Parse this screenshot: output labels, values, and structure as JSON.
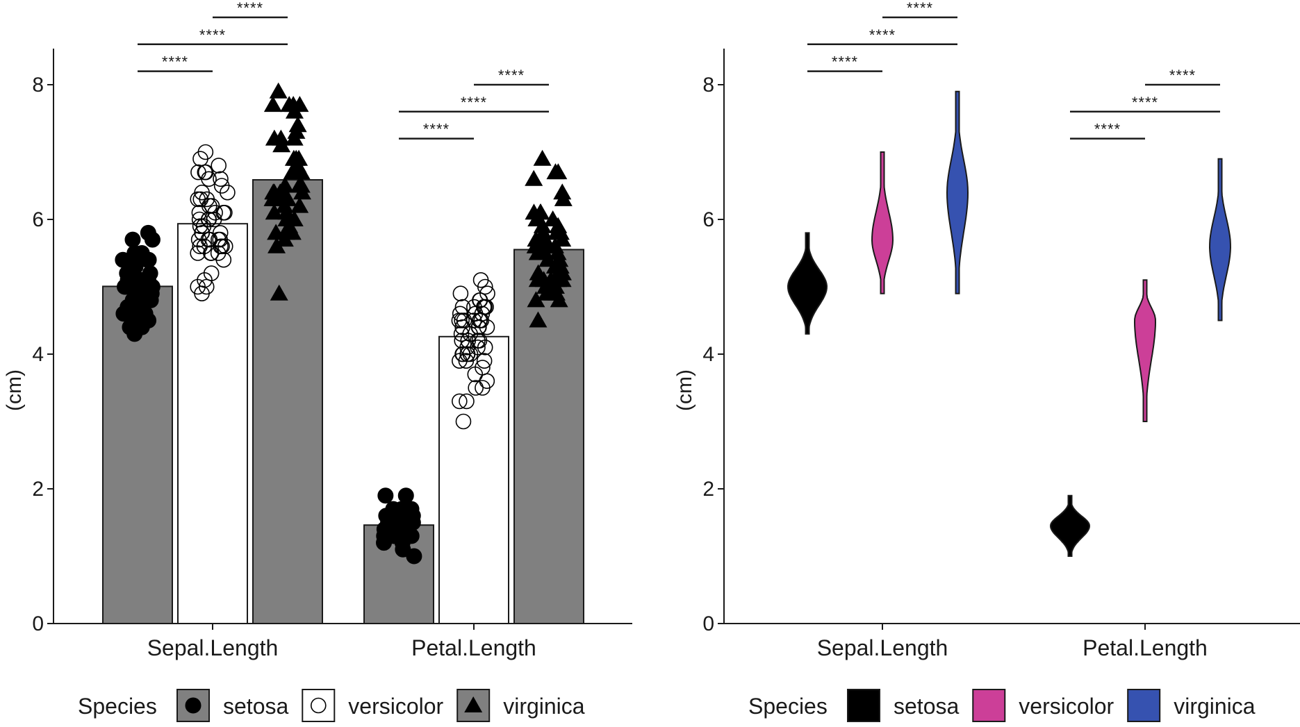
{
  "chart_data": [
    {
      "type": "bar",
      "ylabel": "(cm)",
      "xlabel": "",
      "ylim": [
        0,
        8.5
      ],
      "yticks": [
        0,
        2,
        4,
        6,
        8
      ],
      "grid": false,
      "legend_position": "bottom",
      "categories": [
        "Sepal.Length",
        "Petal.Length"
      ],
      "series": [
        {
          "name": "setosa",
          "fill": "#808080",
          "marker": "filled-circle",
          "values": [
            5.006,
            1.462
          ],
          "points": [
            [
              5.1,
              4.9,
              4.7,
              4.6,
              5.0,
              5.4,
              4.6,
              5.0,
              4.4,
              4.9,
              5.4,
              4.8,
              4.8,
              4.3,
              5.8,
              5.7,
              5.4,
              5.1,
              5.7,
              5.1,
              5.4,
              5.1,
              4.6,
              5.1,
              4.8,
              5.0,
              5.0,
              5.2,
              5.2,
              4.7,
              4.8,
              5.4,
              5.2,
              5.5,
              4.9,
              5.0,
              5.5,
              4.9,
              4.4,
              5.1,
              5.0,
              4.5,
              4.4,
              5.0,
              5.1,
              4.8,
              5.1,
              4.6,
              5.3,
              5.0
            ],
            [
              1.4,
              1.4,
              1.3,
              1.5,
              1.4,
              1.7,
              1.4,
              1.5,
              1.4,
              1.5,
              1.5,
              1.6,
              1.4,
              1.1,
              1.2,
              1.5,
              1.3,
              1.4,
              1.7,
              1.5,
              1.7,
              1.5,
              1.0,
              1.7,
              1.9,
              1.6,
              1.6,
              1.5,
              1.4,
              1.6,
              1.6,
              1.5,
              1.5,
              1.4,
              1.5,
              1.2,
              1.3,
              1.4,
              1.3,
              1.5,
              1.3,
              1.3,
              1.3,
              1.6,
              1.9,
              1.4,
              1.6,
              1.4,
              1.5,
              1.4
            ]
          ]
        },
        {
          "name": "versicolor",
          "fill": "#ffffff",
          "marker": "open-circle",
          "values": [
            5.936,
            4.26
          ],
          "points": [
            [
              7.0,
              6.4,
              6.9,
              5.5,
              6.5,
              5.7,
              6.3,
              4.9,
              6.6,
              5.2,
              5.0,
              5.9,
              6.0,
              6.1,
              5.6,
              6.7,
              5.6,
              5.8,
              6.2,
              5.6,
              5.9,
              6.1,
              6.3,
              6.1,
              6.4,
              6.6,
              6.8,
              6.7,
              6.0,
              5.7,
              5.5,
              5.5,
              5.8,
              6.0,
              5.4,
              6.0,
              6.7,
              6.3,
              5.6,
              5.5,
              5.5,
              6.1,
              5.8,
              5.0,
              5.6,
              5.7,
              5.7,
              6.2,
              5.1,
              5.7
            ],
            [
              4.7,
              4.5,
              4.9,
              4.0,
              4.6,
              4.5,
              4.7,
              3.3,
              4.6,
              3.9,
              3.5,
              4.2,
              4.0,
              4.7,
              3.6,
              4.4,
              4.5,
              4.1,
              4.5,
              3.9,
              4.8,
              4.0,
              4.9,
              4.7,
              4.3,
              4.4,
              4.8,
              5.0,
              4.5,
              3.5,
              3.8,
              3.7,
              3.9,
              5.1,
              4.5,
              4.5,
              4.7,
              4.4,
              4.1,
              4.0,
              4.4,
              4.6,
              4.0,
              3.3,
              4.2,
              4.2,
              4.2,
              4.3,
              3.0,
              4.1
            ]
          ]
        },
        {
          "name": "virginica",
          "fill": "#808080",
          "marker": "filled-triangle",
          "values": [
            6.588,
            5.552
          ],
          "points": [
            [
              6.3,
              5.8,
              7.1,
              6.3,
              6.5,
              7.6,
              4.9,
              7.3,
              6.7,
              7.2,
              6.5,
              6.4,
              6.8,
              5.7,
              5.8,
              6.4,
              6.5,
              7.7,
              7.7,
              6.0,
              6.9,
              5.6,
              7.7,
              6.3,
              6.7,
              7.2,
              6.2,
              6.1,
              6.4,
              7.2,
              7.4,
              7.9,
              6.4,
              6.3,
              6.1,
              7.7,
              6.3,
              6.4,
              6.0,
              6.9,
              6.7,
              6.9,
              5.8,
              6.8,
              6.7,
              6.7,
              6.3,
              6.5,
              6.2,
              5.9
            ],
            [
              6.0,
              5.1,
              5.9,
              5.6,
              5.8,
              6.6,
              4.5,
              6.3,
              5.8,
              6.1,
              5.1,
              5.3,
              5.5,
              5.0,
              5.1,
              5.3,
              5.5,
              6.7,
              6.9,
              5.0,
              5.7,
              4.9,
              6.7,
              4.9,
              5.7,
              6.0,
              4.8,
              4.9,
              5.6,
              5.8,
              6.1,
              6.4,
              5.6,
              5.1,
              5.6,
              6.1,
              5.6,
              5.5,
              4.8,
              5.4,
              5.6,
              5.1,
              5.1,
              5.9,
              5.7,
              5.2,
              5.0,
              5.2,
              5.4,
              5.1
            ]
          ]
        }
      ],
      "comparisons": [
        {
          "category": "Sepal.Length",
          "pair": [
            "setosa",
            "versicolor"
          ],
          "label": "****",
          "y": 8.2
        },
        {
          "category": "Sepal.Length",
          "pair": [
            "setosa",
            "virginica"
          ],
          "label": "****",
          "y": 8.6
        },
        {
          "category": "Sepal.Length",
          "pair": [
            "versicolor",
            "virginica"
          ],
          "label": "****",
          "y": 9.0
        },
        {
          "category": "Petal.Length",
          "pair": [
            "setosa",
            "versicolor"
          ],
          "label": "****",
          "y": 7.2
        },
        {
          "category": "Petal.Length",
          "pair": [
            "setosa",
            "virginica"
          ],
          "label": "****",
          "y": 7.6
        },
        {
          "category": "Petal.Length",
          "pair": [
            "versicolor",
            "virginica"
          ],
          "label": "****",
          "y": 8.0
        }
      ],
      "legend": {
        "title": "Species",
        "items": [
          "setosa",
          "versicolor",
          "virginica"
        ]
      }
    },
    {
      "type": "violin",
      "ylabel": "(cm)",
      "xlabel": "",
      "ylim": [
        0,
        8.5
      ],
      "yticks": [
        0,
        2,
        4,
        6,
        8
      ],
      "grid": false,
      "legend_position": "bottom",
      "categories": [
        "Sepal.Length",
        "Petal.Length"
      ],
      "series": [
        {
          "name": "setosa",
          "fill": "#000000",
          "range": [
            [
              4.3,
              5.8
            ],
            [
              1.0,
              1.9
            ]
          ],
          "peak": [
            5.0,
            1.45
          ]
        },
        {
          "name": "versicolor",
          "fill": "#cc3f98",
          "range": [
            [
              4.9,
              7.0
            ],
            [
              3.0,
              5.1
            ]
          ],
          "peak": [
            5.7,
            4.5
          ]
        },
        {
          "name": "virginica",
          "fill": "#3652b0",
          "range": [
            [
              4.9,
              7.9
            ],
            [
              4.5,
              6.9
            ]
          ],
          "peak": [
            6.4,
            5.6
          ]
        }
      ],
      "comparisons": [
        {
          "category": "Sepal.Length",
          "pair": [
            "setosa",
            "versicolor"
          ],
          "label": "****",
          "y": 8.2
        },
        {
          "category": "Sepal.Length",
          "pair": [
            "setosa",
            "virginica"
          ],
          "label": "****",
          "y": 8.6
        },
        {
          "category": "Sepal.Length",
          "pair": [
            "versicolor",
            "virginica"
          ],
          "label": "****",
          "y": 9.0
        },
        {
          "category": "Petal.Length",
          "pair": [
            "setosa",
            "versicolor"
          ],
          "label": "****",
          "y": 7.2
        },
        {
          "category": "Petal.Length",
          "pair": [
            "setosa",
            "virginica"
          ],
          "label": "****",
          "y": 7.6
        },
        {
          "category": "Petal.Length",
          "pair": [
            "versicolor",
            "virginica"
          ],
          "label": "****",
          "y": 8.0
        }
      ],
      "legend": {
        "title": "Species",
        "items": [
          "setosa",
          "versicolor",
          "virginica"
        ]
      }
    }
  ]
}
